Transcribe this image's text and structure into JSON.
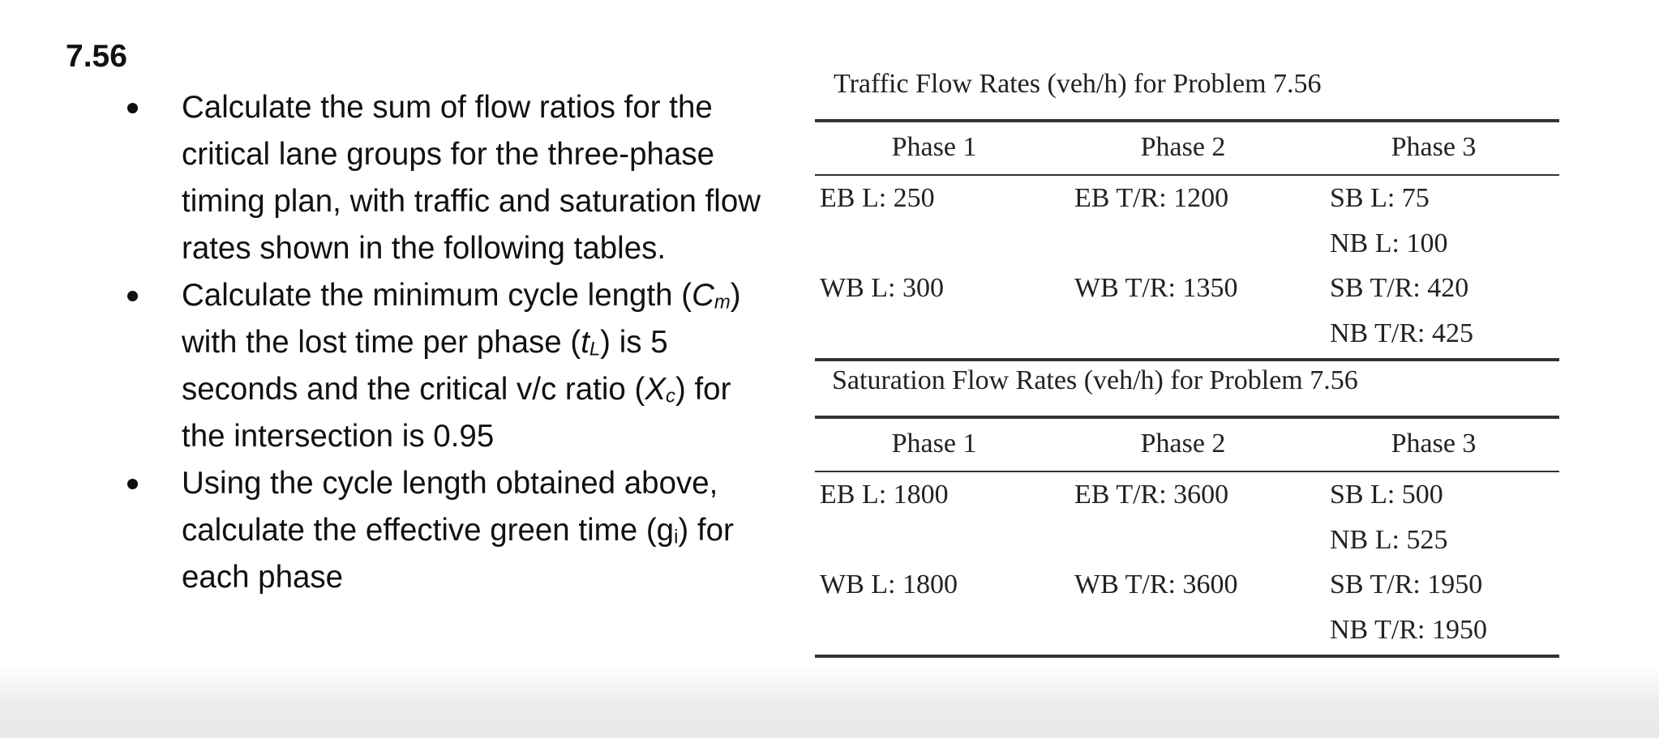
{
  "problem": {
    "number": "7.56",
    "bullets": [
      [
        "Calculate the sum of flow ratios for the critical lane groups for the three-phase timing plan, with traffic and saturation flow rates shown in the following tables."
      ],
      [
        "Calculate the minimum cycle length (",
        "C",
        "m",
        ") with the lost time per phase (",
        "t",
        "L",
        ") is 5 seconds and the critical v/c ratio (",
        "X",
        "c",
        ") for the intersection is 0.95"
      ],
      [
        "Using the cycle length obtained above, calculate the effective green time (g",
        "i",
        ") for each phase"
      ]
    ]
  },
  "tables": [
    {
      "title": "Traffic Flow Rates (veh/h) for Problem 7.56",
      "header": [
        "Phase 1",
        "Phase 2",
        "Phase 3"
      ],
      "rows": [
        [
          "EB L: 250",
          "EB T/R: 1200",
          "SB L: 75"
        ],
        [
          null,
          null,
          "NB L: 100"
        ],
        [
          "WB L: 300",
          "WB T/R: 1350",
          "SB T/R: 420"
        ],
        [
          null,
          null,
          "NB T/R: 425"
        ]
      ]
    },
    {
      "title": "Saturation Flow Rates (veh/h) for Problem 7.56",
      "header": [
        "Phase 1",
        "Phase 2",
        "Phase 3"
      ],
      "rows": [
        [
          "EB L: 1800",
          "EB T/R: 3600",
          "SB L: 500"
        ],
        [
          null,
          null,
          "NB L: 525"
        ],
        [
          "WB L: 1800",
          "WB T/R: 3600",
          "SB T/R: 1950"
        ],
        [
          null,
          null,
          "NB T/R: 1950"
        ]
      ]
    }
  ]
}
